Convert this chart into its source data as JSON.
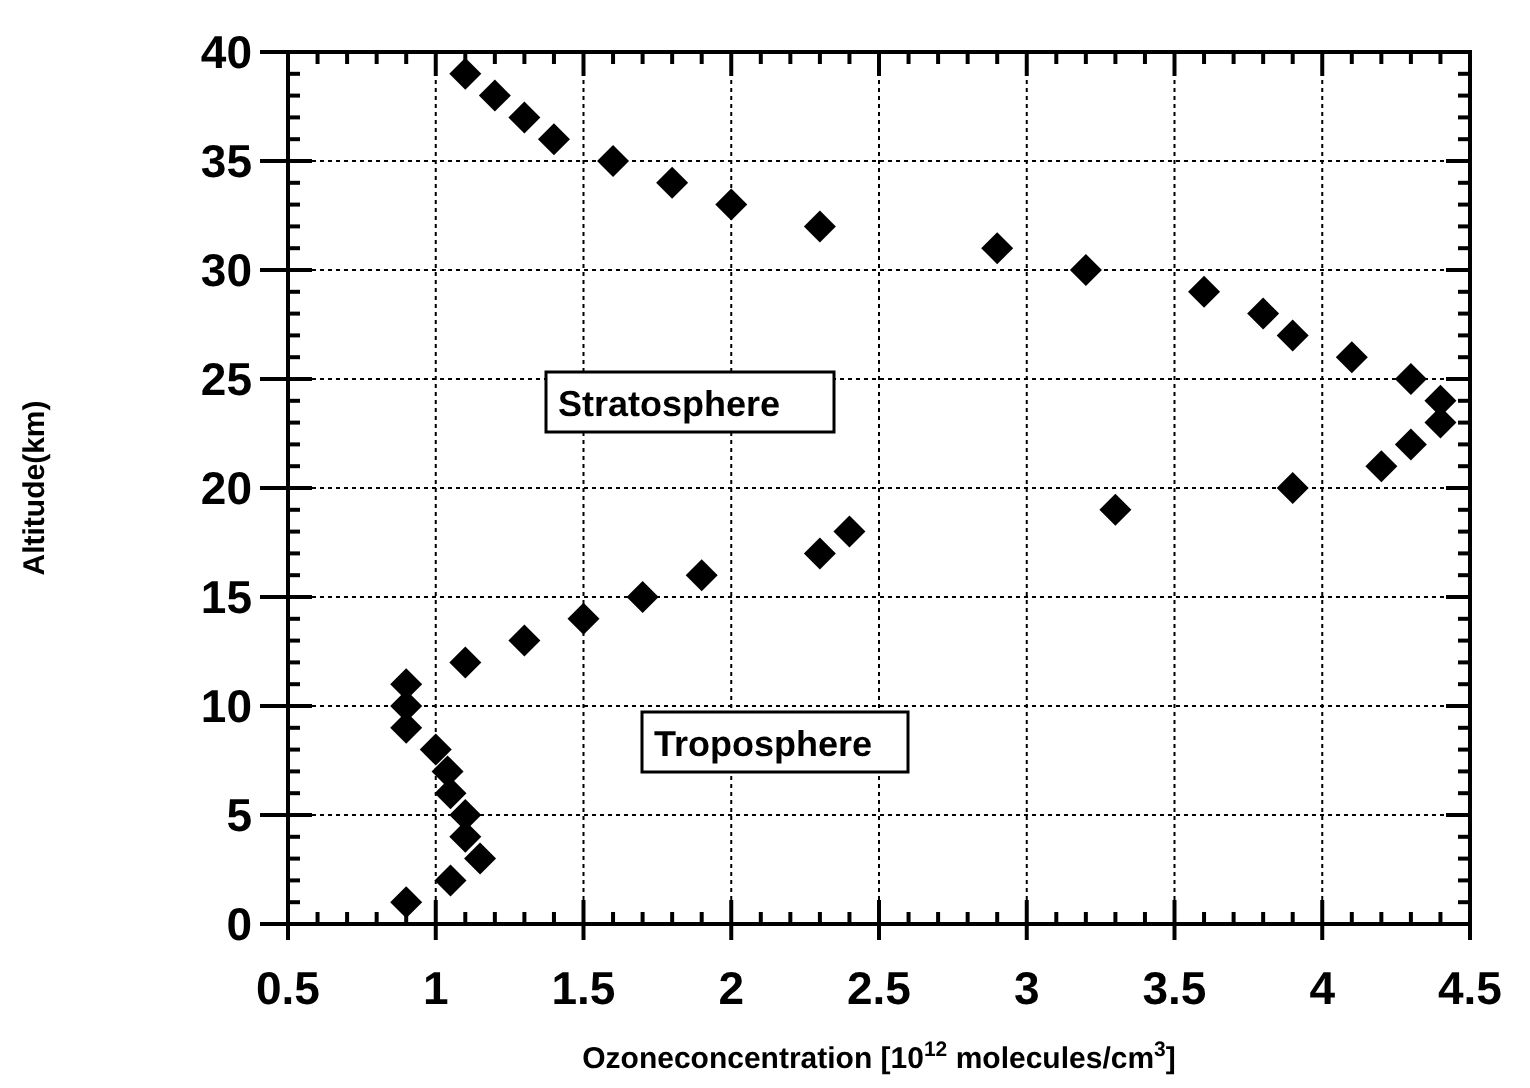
{
  "chart_data": {
    "type": "scatter",
    "xlabel": "Ozoneconcentration  [10$^{12}$ molecules/cm$^{3}$]",
    "ylabel": "Altitude(km)",
    "x": [
      1.1,
      1.2,
      1.3,
      1.4,
      1.6,
      1.8,
      2.0,
      2.3,
      2.9,
      3.2,
      3.6,
      3.8,
      3.9,
      4.1,
      4.3,
      4.4,
      4.4,
      4.3,
      4.2,
      3.9,
      3.3,
      2.4,
      2.3,
      1.9,
      1.7,
      1.5,
      1.3,
      1.1,
      0.9,
      0.9,
      0.9,
      1.0,
      1.04,
      1.05,
      1.1,
      1.1,
      1.15,
      1.05,
      0.9
    ],
    "values": [
      39,
      38,
      37,
      36,
      35,
      34,
      33,
      32,
      31,
      30,
      29,
      28,
      27,
      26,
      25,
      24,
      23,
      22,
      21,
      20,
      19,
      18,
      17,
      16,
      15,
      14,
      13,
      12,
      11,
      10,
      9,
      8,
      7,
      6,
      5,
      4,
      3,
      2,
      1
    ],
    "color": "#000000",
    "marker": "diamond",
    "grid": true,
    "annotations": [
      "Stratosphere",
      "Troposphere"
    ],
    "xlim": [
      0.5,
      4.5
    ],
    "xticks": [
      0.5,
      {
        "value": 0.6,
        "label": null
      },
      {
        "value": 0.7,
        "label": null
      },
      {
        "value": 0.8,
        "label": null
      },
      {
        "value": 0.9,
        "label": null
      },
      1,
      {
        "value": 1.1,
        "label": null
      },
      {
        "value": 1.2,
        "label": null
      },
      {
        "value": 1.3,
        "label": null
      },
      {
        "value": 1.4,
        "label": null
      },
      1.5,
      {
        "value": 1.6,
        "label": null
      },
      {
        "value": 1.7,
        "label": null
      },
      {
        "value": 1.8,
        "label": null
      },
      {
        "value": 1.9,
        "label": null
      },
      2,
      {
        "value": 2.1,
        "label": null
      },
      {
        "value": 2.2,
        "label": null
      },
      {
        "value": 2.3,
        "label": null
      },
      {
        "value": 2.4,
        "label": null
      },
      2.5,
      {
        "value": 2.6,
        "label": null
      },
      {
        "value": 2.7,
        "label": null
      },
      {
        "value": 2.8,
        "label": null
      },
      {
        "value": 2.9,
        "label": null
      },
      3,
      {
        "value": 3.1,
        "label": null
      },
      {
        "value": 3.2,
        "label": null
      },
      {
        "value": 3.3,
        "label": null
      },
      {
        "value": 3.4,
        "label": null
      },
      3.5,
      {
        "value": 3.6,
        "label": null
      },
      {
        "value": 3.7,
        "label": null
      },
      {
        "value": 3.8,
        "label": null
      },
      {
        "value": 3.9,
        "label": null
      },
      4,
      {
        "value": 4.1,
        "label": null
      },
      {
        "value": 4.2,
        "label": null
      },
      {
        "value": 4.3,
        "label": null
      },
      {
        "value": 4.4,
        "label": null
      },
      4.5
    ],
    "ylim": [
      0,
      40
    ],
    "yticks": [
      0,
      {
        "value": 1,
        "label": null
      },
      {
        "value": 2,
        "label": null
      },
      {
        "value": 3,
        "label": null
      },
      {
        "value": 4,
        "label": null
      },
      5,
      {
        "value": 6,
        "label": null
      },
      {
        "value": 7,
        "label": null
      },
      {
        "value": 8,
        "label": null
      },
      {
        "value": 9,
        "label": null
      },
      10,
      {
        "value": 11,
        "label": null
      },
      {
        "value": 12,
        "label": null
      },
      {
        "value": 13,
        "label": null
      },
      {
        "value": 14,
        "label": null
      },
      15,
      {
        "value": 16,
        "label": null
      },
      {
        "value": 17,
        "label": null
      },
      {
        "value": 18,
        "label": null
      },
      {
        "value": 19,
        "label": null
      },
      20,
      {
        "value": 21,
        "label": null
      },
      {
        "value": 22,
        "label": null
      },
      {
        "value": 23,
        "label": null
      },
      {
        "value": 24,
        "label": null
      },
      25,
      {
        "value": 26,
        "label": null
      },
      {
        "value": 27,
        "label": null
      },
      {
        "value": 28,
        "label": null
      },
      {
        "value": 29,
        "label": null
      },
      30,
      {
        "value": 31,
        "label": null
      },
      {
        "value": 32,
        "label": null
      },
      {
        "value": 33,
        "label": null
      },
      {
        "value": 34,
        "label": null
      },
      35,
      {
        "value": 36,
        "label": null
      },
      {
        "value": 37,
        "label": null
      },
      {
        "value": 38,
        "label": null
      },
      {
        "value": 39,
        "label": null
      },
      40
    ]
  }
}
